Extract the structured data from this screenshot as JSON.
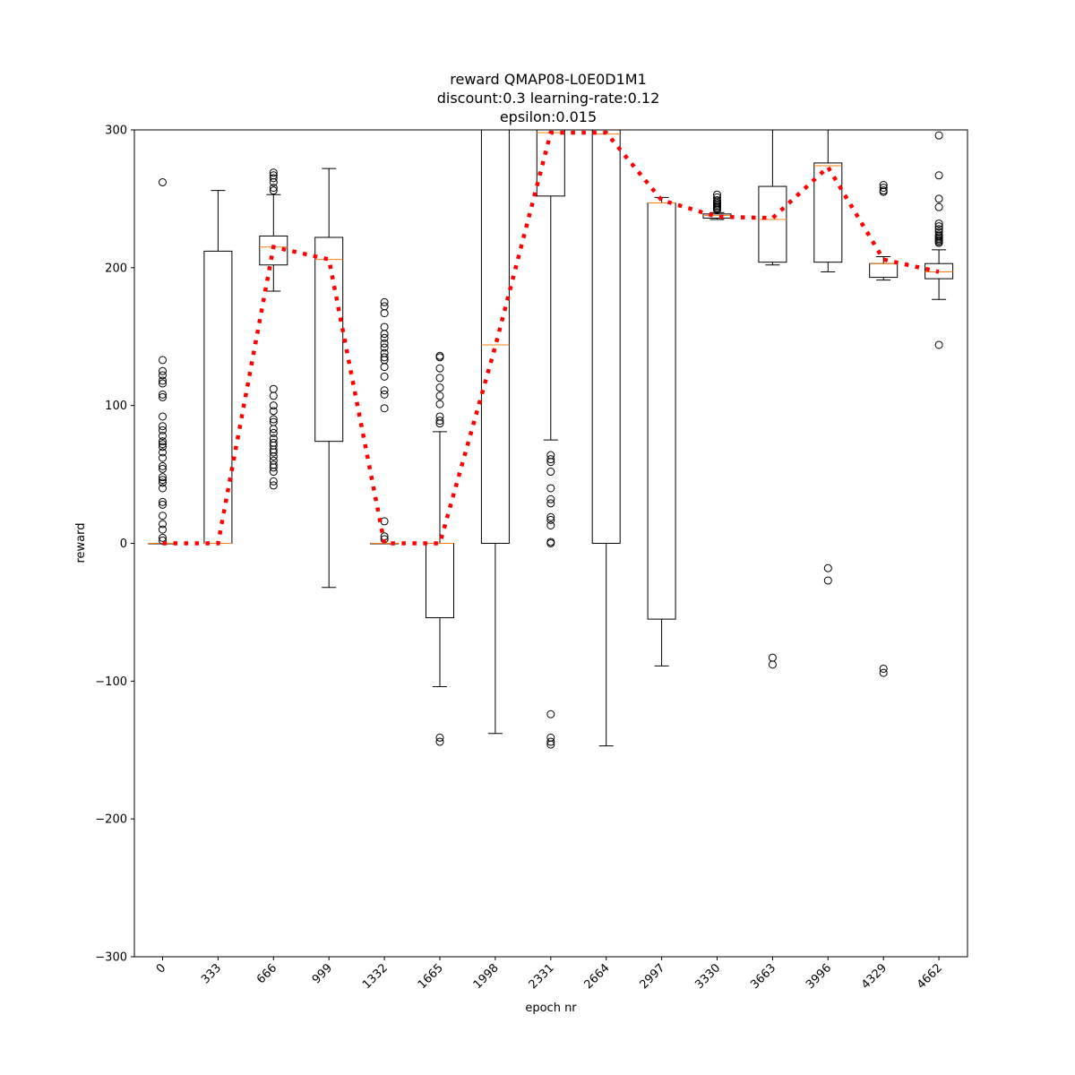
{
  "chart_data": {
    "type": "box",
    "title_lines": [
      "reward QMAP08-L0E0D1M1",
      "discount:0.3 learning-rate:0.12",
      "epsilon:0.015"
    ],
    "xlabel": "epoch nr",
    "ylabel": "reward",
    "ylim": [
      -300,
      300
    ],
    "yticks": [
      -300,
      -200,
      -100,
      0,
      100,
      200,
      300
    ],
    "ytick_labels": [
      "−300",
      "−200",
      "−100",
      "0",
      "100",
      "200",
      "300"
    ],
    "categories": [
      "0",
      "333",
      "666",
      "999",
      "1332",
      "1665",
      "1998",
      "2331",
      "2664",
      "2997",
      "3330",
      "3663",
      "3996",
      "4329",
      "4662"
    ],
    "boxes": [
      {
        "whislo": 0,
        "q1": 0,
        "med": 0,
        "q3": 0,
        "whishi": 0,
        "fliers": [
          262,
          133,
          125,
          122,
          118,
          116,
          108,
          106,
          92,
          85,
          82,
          78,
          74,
          72,
          70,
          66,
          62,
          56,
          54,
          48,
          46,
          44,
          40,
          30,
          28,
          20,
          14,
          10,
          4,
          2
        ]
      },
      {
        "whislo": 0,
        "q1": 0,
        "med": 0,
        "q3": 212,
        "whishi": 256,
        "fliers": []
      },
      {
        "whislo": 183,
        "q1": 202,
        "med": 215,
        "q3": 223,
        "whishi": 253,
        "fliers": [
          269,
          267,
          265,
          262,
          258,
          256,
          112,
          107,
          100,
          96,
          90,
          88,
          83,
          80,
          76,
          73,
          71,
          68,
          66,
          63,
          60,
          57,
          55,
          52,
          45,
          42
        ]
      },
      {
        "whislo": -32,
        "q1": 74,
        "med": 206,
        "q3": 222,
        "whishi": 272,
        "fliers": []
      },
      {
        "whislo": 0,
        "q1": 0,
        "med": 0,
        "q3": 0,
        "whishi": 0,
        "fliers": [
          175,
          172,
          167,
          157,
          152,
          149,
          145,
          142,
          138,
          135,
          133,
          128,
          121,
          111,
          108,
          98,
          16,
          5,
          3
        ]
      },
      {
        "whislo": -104,
        "q1": -54,
        "med": 0,
        "q3": 0,
        "whishi": 81,
        "fliers": [
          136,
          135,
          127,
          120,
          113,
          107,
          101,
          92,
          89,
          87,
          -141,
          -144
        ]
      },
      {
        "whislo": -138,
        "q1": 0,
        "med": 144,
        "q3": 300,
        "whishi": 300,
        "fliers": []
      },
      {
        "whislo": 75,
        "q1": 252,
        "med": 298,
        "q3": 300,
        "whishi": 300,
        "fliers": [
          64,
          61,
          59,
          52,
          40,
          32,
          29,
          19,
          17,
          13,
          1,
          0,
          -124,
          -141,
          -144,
          -146
        ]
      },
      {
        "whislo": -147,
        "q1": 0,
        "med": 297,
        "q3": 300,
        "whishi": 300,
        "fliers": []
      },
      {
        "whislo": -89,
        "q1": -55,
        "med": 247,
        "q3": 247,
        "whishi": 251,
        "fliers": []
      },
      {
        "whislo": 235,
        "q1": 236,
        "med": 238,
        "q3": 239,
        "whishi": 240,
        "fliers": [
          253,
          251,
          249,
          248,
          247,
          246,
          245,
          244,
          243,
          242
        ]
      },
      {
        "whislo": 202,
        "q1": 204,
        "med": 235,
        "q3": 259,
        "whishi": 300,
        "fliers": [
          -83,
          -88
        ]
      },
      {
        "whislo": 197,
        "q1": 204,
        "med": 274,
        "q3": 276,
        "whishi": 300,
        "fliers": [
          -18,
          -27
        ]
      },
      {
        "whislo": 191,
        "q1": 193,
        "med": 203,
        "q3": 203,
        "whishi": 208,
        "fliers": [
          260,
          258,
          256,
          255,
          -91,
          -94
        ]
      },
      {
        "whislo": 177,
        "q1": 192,
        "med": 197,
        "q3": 203,
        "whishi": 213,
        "fliers": [
          296,
          267,
          250,
          244,
          232,
          230,
          228,
          226,
          224,
          223,
          222,
          221,
          220,
          219,
          218,
          144
        ]
      }
    ],
    "mean_line": {
      "values": [
        0,
        0,
        215,
        206,
        0,
        0,
        143,
        298,
        298,
        249,
        237,
        236,
        273,
        206,
        197
      ],
      "color": "#ff0000",
      "style": "dotted"
    },
    "colors": {
      "box": "#000000",
      "median": "#ff7f0e",
      "mean_line": "#ff0000",
      "flier": "#000000"
    },
    "grid": false
  }
}
